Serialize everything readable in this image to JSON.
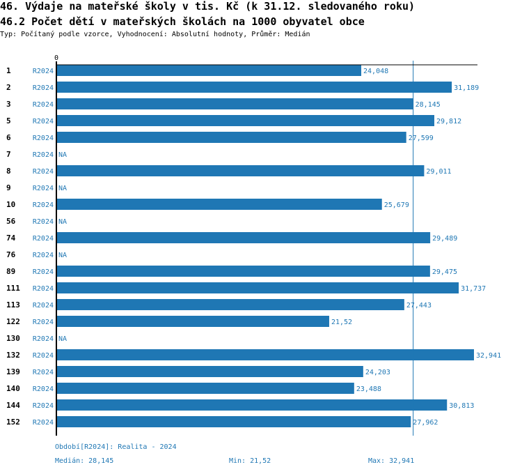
{
  "header": {
    "title": "46. Výdaje na mateřské školy v tis. Kč (k 31.12. sledovaného roku)",
    "subtitle": "46.2 Počet dětí v mateřských školách na 1000 obyvatel obce",
    "info": "Typ: Počítaný podle vzorce, Vyhodnocení: Absolutní hodnoty, Průměr: Medián"
  },
  "colors": {
    "bar": "#1f77b4",
    "axis": "#000000",
    "median": "#1f77b4"
  },
  "chart_data": {
    "type": "bar",
    "orientation": "horizontal",
    "x_tick_label": "0",
    "xlim": [
      0,
      32.941
    ],
    "period": "R2024",
    "categories": [
      "1",
      "2",
      "3",
      "5",
      "6",
      "7",
      "8",
      "9",
      "10",
      "56",
      "74",
      "76",
      "89",
      "111",
      "113",
      "122",
      "130",
      "132",
      "139",
      "140",
      "144",
      "152"
    ],
    "values": [
      24.048,
      31.189,
      28.145,
      29.812,
      27.599,
      null,
      29.011,
      null,
      25.679,
      null,
      29.489,
      null,
      29.475,
      31.737,
      27.443,
      21.52,
      null,
      32.941,
      24.203,
      23.488,
      30.813,
      27.962
    ],
    "labels": [
      "24,048",
      "31,189",
      "28,145",
      "29,812",
      "27,599",
      "NA",
      "29,011",
      "NA",
      "25,679",
      "NA",
      "29,489",
      "NA",
      "29,475",
      "31,737",
      "27,443",
      "21,52",
      "NA",
      "32,941",
      "24,203",
      "23,488",
      "30,813",
      "27,962"
    ],
    "median": 28.145
  },
  "footer": {
    "period_legend": "Období[R2024]: Realita - 2024",
    "median": "Medián: 28,145",
    "min": "Min: 21,52",
    "max": "Max: 32,941"
  }
}
